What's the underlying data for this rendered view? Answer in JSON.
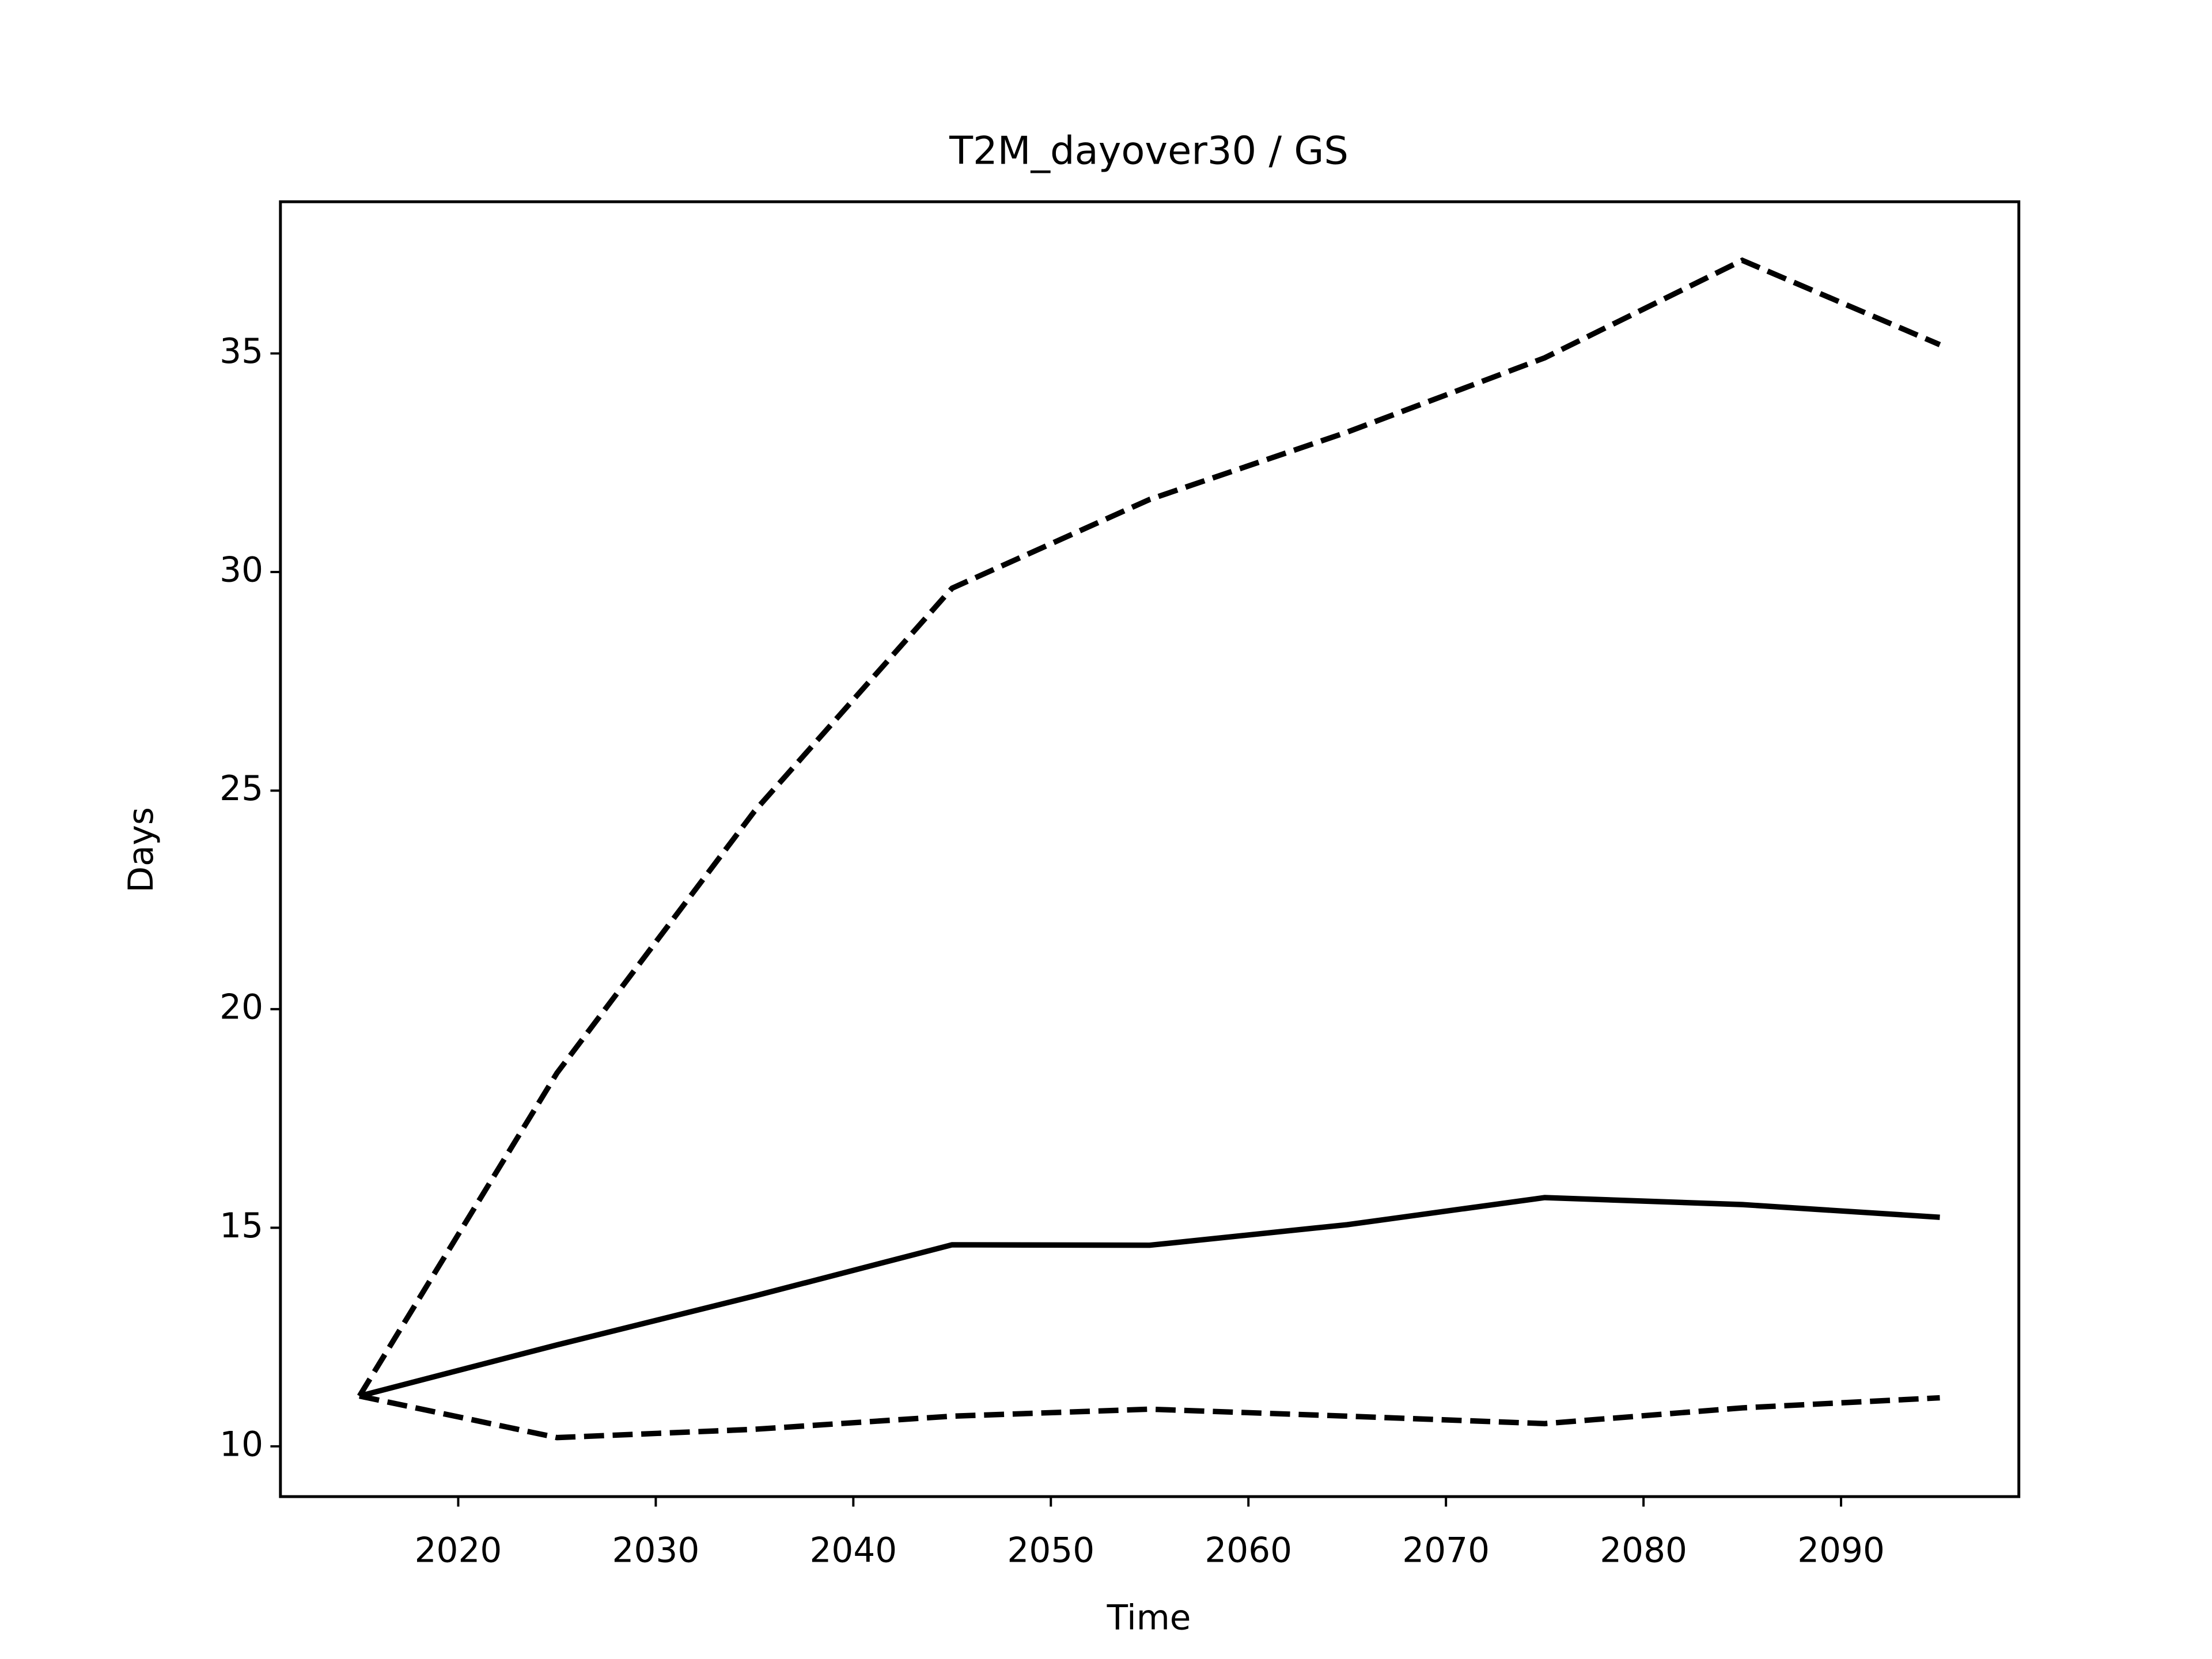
{
  "chart_data": {
    "type": "line",
    "title": "T2M_dayover30 / GS",
    "x_label": "Time",
    "y_label": "Days",
    "x": [
      2015,
      2025,
      2035,
      2045,
      2055,
      2065,
      2075,
      2085,
      2095
    ],
    "series": [
      {
        "color": "#000000",
        "linestyle": "solid",
        "values": [
          11.15,
          12.32,
          13.44,
          14.61,
          14.6,
          15.07,
          15.69,
          15.53,
          15.24
        ]
      },
      {
        "color": "#000000",
        "linestyle": "dashed",
        "values": [
          11.15,
          18.54,
          24.53,
          29.63,
          31.66,
          33.2,
          34.9,
          37.13,
          35.2
        ]
      },
      {
        "color": "#000000",
        "linestyle": "dashed",
        "values": [
          11.15,
          10.2,
          10.39,
          10.69,
          10.85,
          10.69,
          10.52,
          10.88,
          11.11
        ]
      }
    ],
    "xlim": [
      2011,
      2099
    ],
    "xticks": [
      2020,
      2030,
      2040,
      2050,
      2060,
      2070,
      2080,
      2090
    ],
    "ylim": [
      8.85,
      38.47
    ],
    "yticks": [
      10,
      15,
      20,
      25,
      30,
      35
    ],
    "grid": false
  }
}
